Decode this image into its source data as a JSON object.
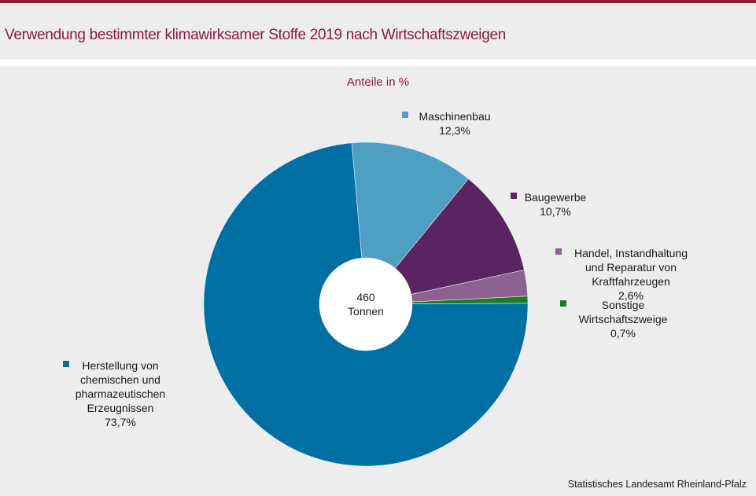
{
  "header": {
    "title": "Verwendung bestimmter klimawirksamer Stoffe 2019 nach Wirtschaftszweigen"
  },
  "chart_data": {
    "type": "pie",
    "subtitle": "Anteile in %",
    "center_label": [
      "460",
      "Tonnen"
    ],
    "slices": [
      {
        "label": [
          "Maschinenbau"
        ],
        "value_label": "12,3%",
        "value": 12.3,
        "color": "#4e9fc1"
      },
      {
        "label": [
          "Baugewerbe"
        ],
        "value_label": "10,7%",
        "value": 10.7,
        "color": "#5a2361"
      },
      {
        "label": [
          "Handel, Instandhaltung",
          "und Reparatur von",
          "Kraftfahrzeugen"
        ],
        "value_label": "2,6%",
        "value": 2.6,
        "color": "#8d6293"
      },
      {
        "label": [
          "Sonstige",
          "Wirtschaftszweige"
        ],
        "value_label": "0,7%",
        "value": 0.7,
        "color": "#1f7a26"
      },
      {
        "label": [
          "Herstellung von",
          "chemischen und",
          "pharmazeutischen",
          "Erzeugnissen"
        ],
        "value_label": "73,7%",
        "value": 73.7,
        "color": "#0070a4"
      }
    ]
  },
  "footer": {
    "source": "Statistisches Landesamt Rheinland-Pfalz"
  }
}
